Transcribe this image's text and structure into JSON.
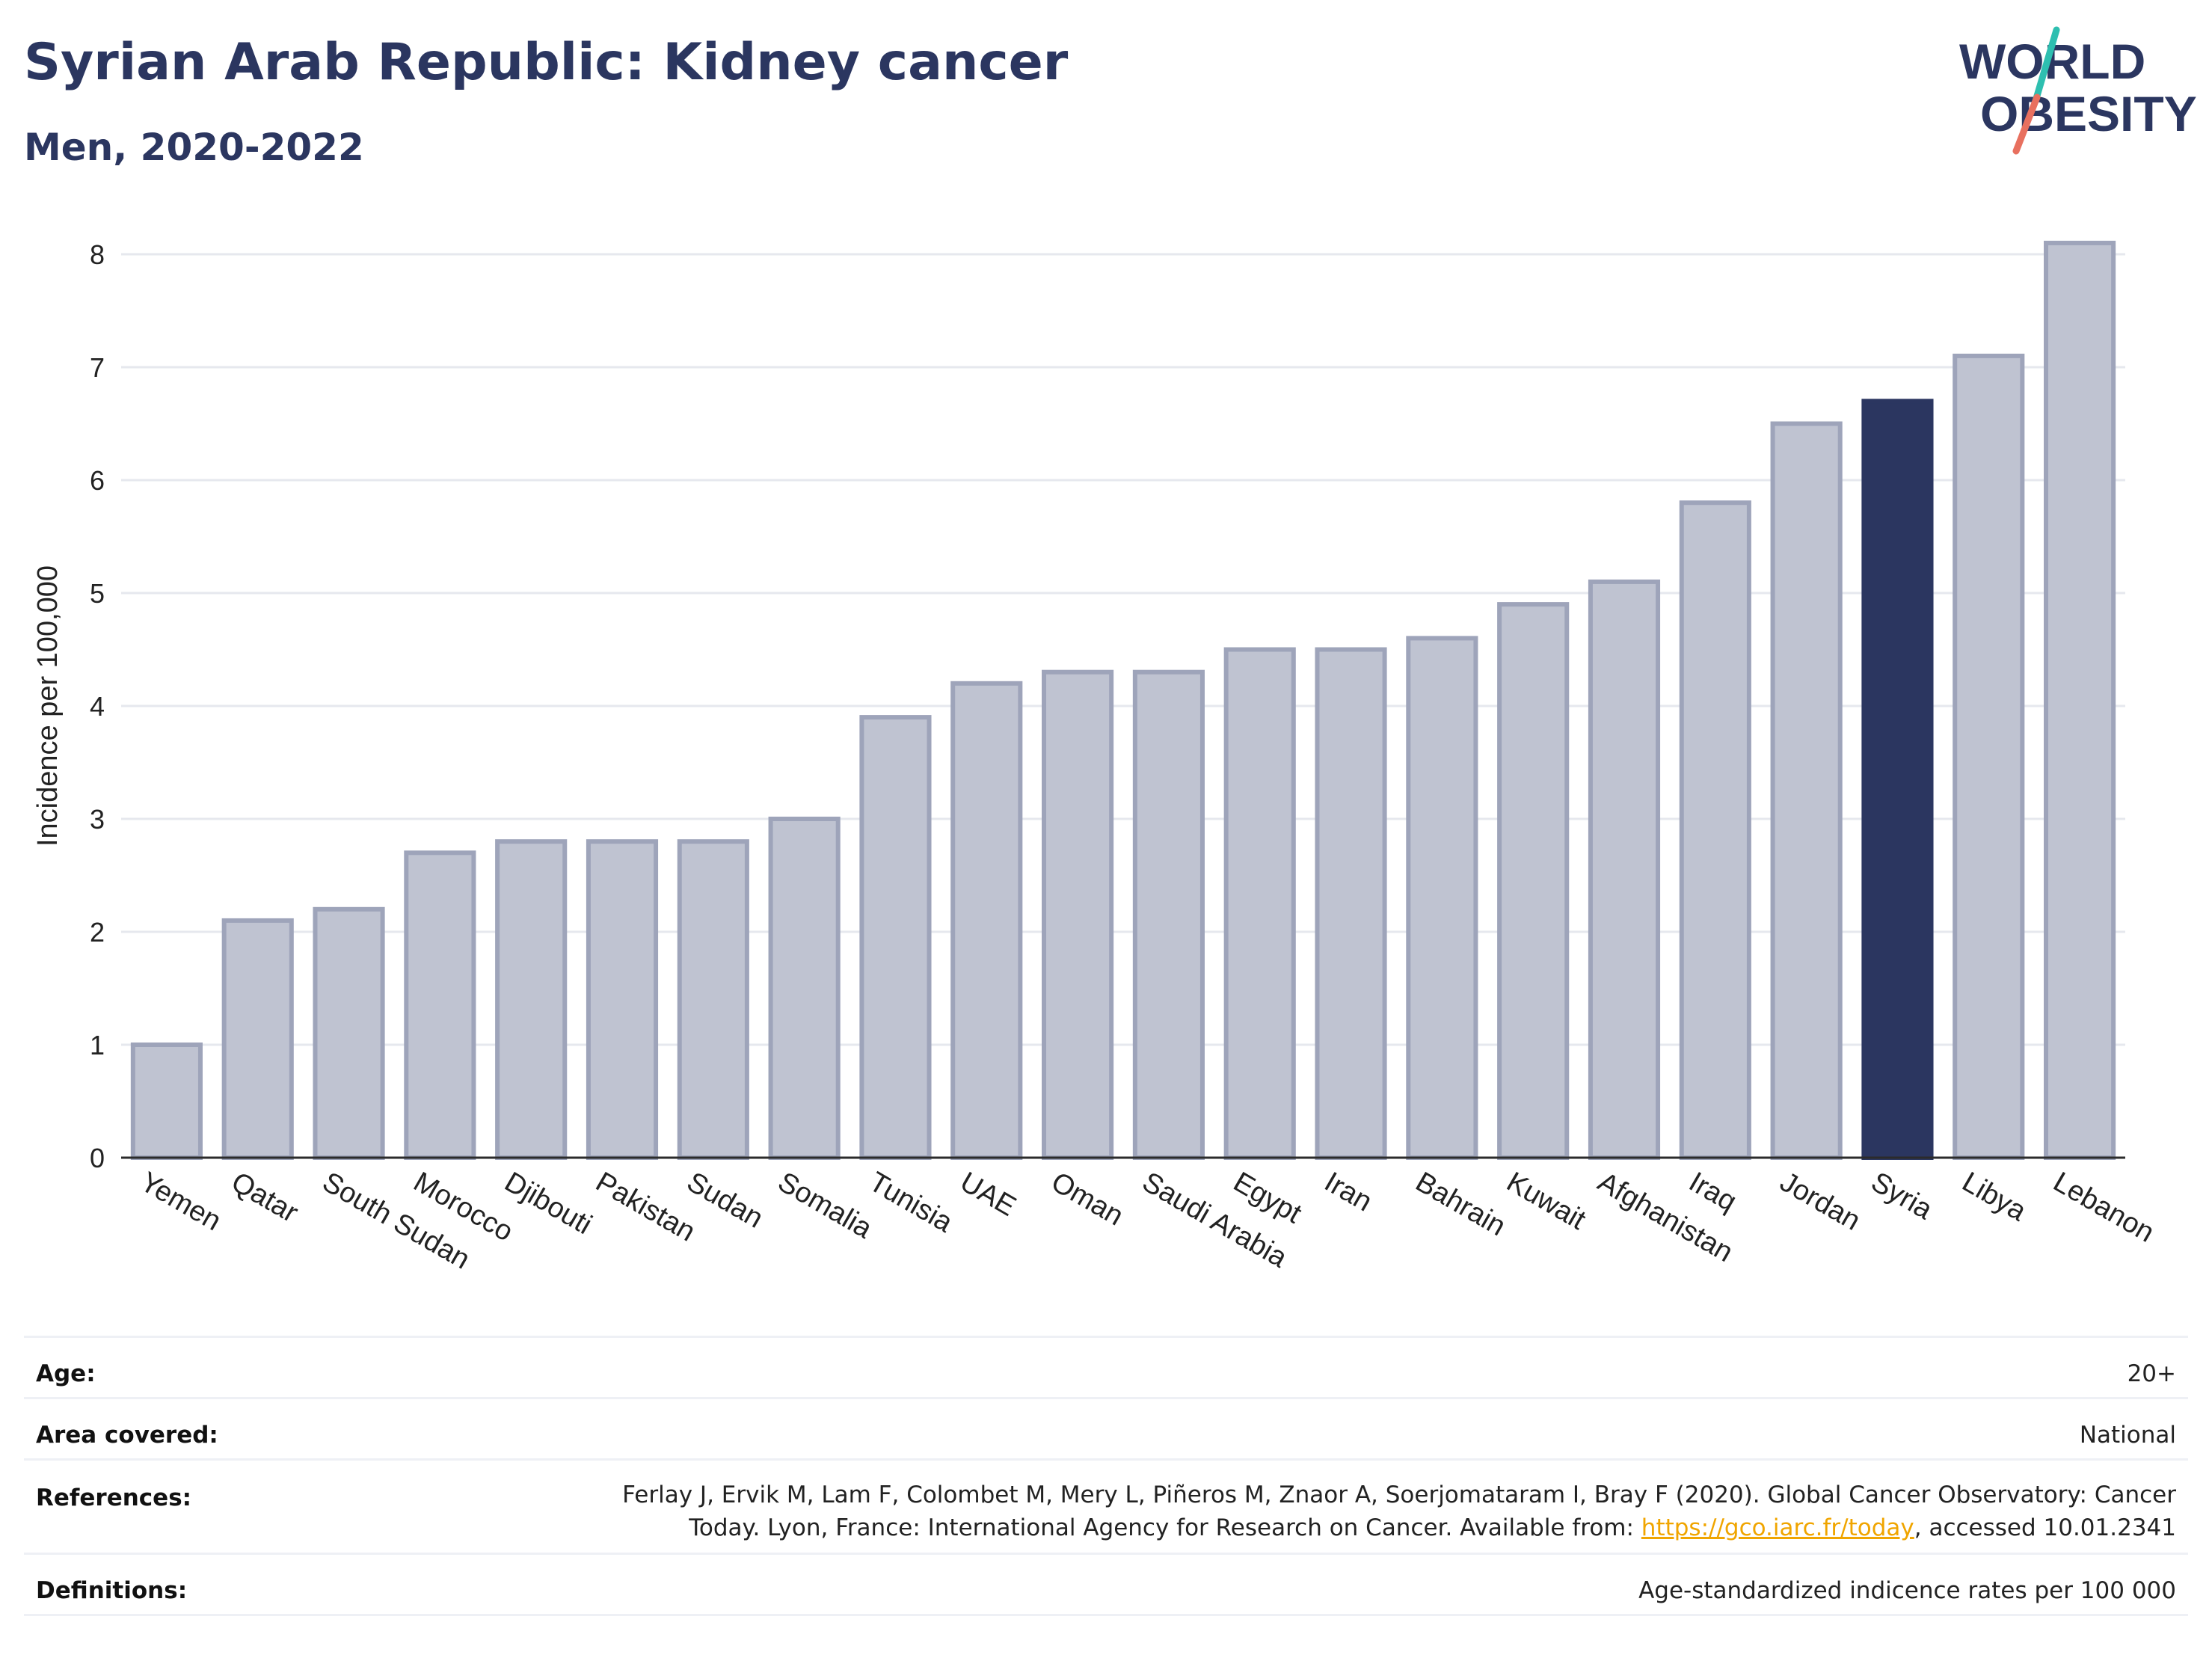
{
  "header": {
    "title": "Syrian Arab Republic: Kidney cancer",
    "subtitle": "Men, 2020-2022"
  },
  "logo": {
    "line1": "WORLD",
    "line2": "OBESITY",
    "colors": {
      "text": "#2b3660",
      "slash_teal": "#2ebfb0",
      "slash_coral": "#e8705f"
    }
  },
  "chart_data": {
    "type": "bar",
    "ylabel": "Incidence per 100,000",
    "xlabel": "",
    "ylim": [
      0,
      8
    ],
    "yticks": [
      0,
      1,
      2,
      3,
      4,
      5,
      6,
      7,
      8
    ],
    "grid": true,
    "highlight": "Syria",
    "colors": {
      "bar": "#bfc3d1",
      "bar_edge": "#9ea4ba",
      "highlight": "#2b3660",
      "grid": "#e6e8ee"
    },
    "categories": [
      "Yemen",
      "Qatar",
      "South Sudan",
      "Morocco",
      "Djibouti",
      "Pakistan",
      "Sudan",
      "Somalia",
      "Tunisia",
      "UAE",
      "Oman",
      "Saudi Arabia",
      "Egypt",
      "Iran",
      "Bahrain",
      "Kuwait",
      "Afghanistan",
      "Iraq",
      "Jordan",
      "Syria",
      "Libya",
      "Lebanon"
    ],
    "values": [
      1.0,
      2.1,
      2.2,
      2.7,
      2.8,
      2.8,
      2.8,
      3.0,
      3.9,
      4.2,
      4.3,
      4.3,
      4.5,
      4.5,
      4.6,
      4.9,
      5.1,
      5.8,
      6.5,
      6.7,
      7.1,
      8.1
    ]
  },
  "meta": {
    "age_label": "Age:",
    "age_value": "20+",
    "area_label": "Area covered:",
    "area_value": "National",
    "references_label": "References:",
    "references_line1": "Ferlay J, Ervik M, Lam F, Colombet M, Mery L, Piñeros M, Znaor A, Soerjomataram I, Bray F (2020). Global Cancer Observatory: Cancer",
    "references_line2_pre": "Today. Lyon, France: International Agency for Research on Cancer. Available from: ",
    "references_link": "https://gco.iarc.fr/today",
    "references_line2_post": ", accessed 10.01.2341",
    "definitions_label": "Definitions:",
    "definitions_value": "Age-standardized indicence rates per 100 000"
  }
}
